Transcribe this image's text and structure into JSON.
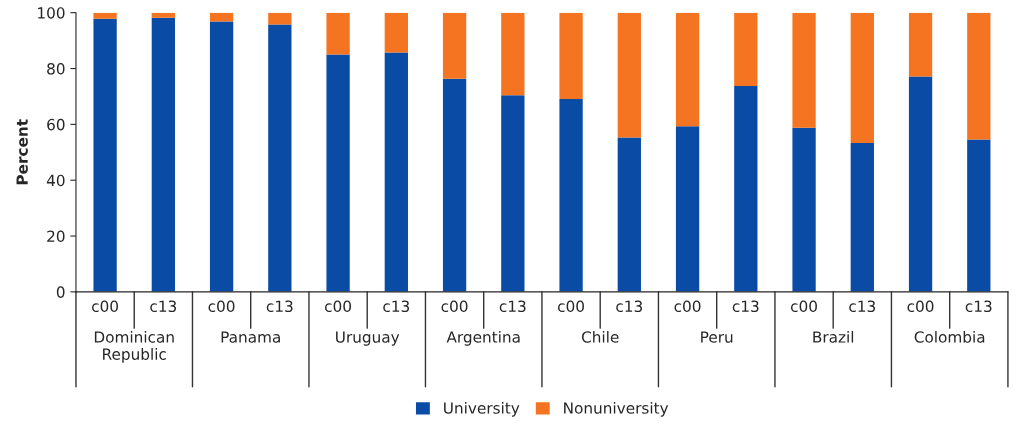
{
  "chart_data": {
    "type": "bar",
    "stacked": true,
    "ylabel": "Percent",
    "categories": [
      "c00",
      "c13",
      "c00",
      "c13",
      "c00",
      "c13",
      "c00",
      "c13",
      "c00",
      "c13",
      "c00",
      "c13",
      "c00",
      "c13",
      "c00",
      "c13"
    ],
    "series": [
      {
        "name": "University",
        "color": "#0a4ba6",
        "values": [
          97.8,
          98.2,
          96.8,
          95.8,
          85.0,
          85.7,
          76.3,
          70.4,
          69.1,
          55.3,
          59.3,
          73.7,
          58.8,
          53.3,
          77.1,
          54.6
        ]
      },
      {
        "name": "Nonuniversity",
        "color": "#f47421",
        "values": [
          2.2,
          1.8,
          3.2,
          4.2,
          15.0,
          14.3,
          23.7,
          29.6,
          30.9,
          44.7,
          40.7,
          26.3,
          41.2,
          46.7,
          22.9,
          45.4
        ]
      }
    ],
    "annotations": [
      "Dominican\nRepublic",
      "Panama",
      "Uruguay",
      "Argentina",
      "Chile",
      "Peru",
      "Brazil",
      "Colombia"
    ],
    "ylim": [
      0,
      100
    ],
    "yticks": [
      0,
      20,
      40,
      60,
      80,
      100
    ],
    "grid": false,
    "legend": "bottom"
  }
}
